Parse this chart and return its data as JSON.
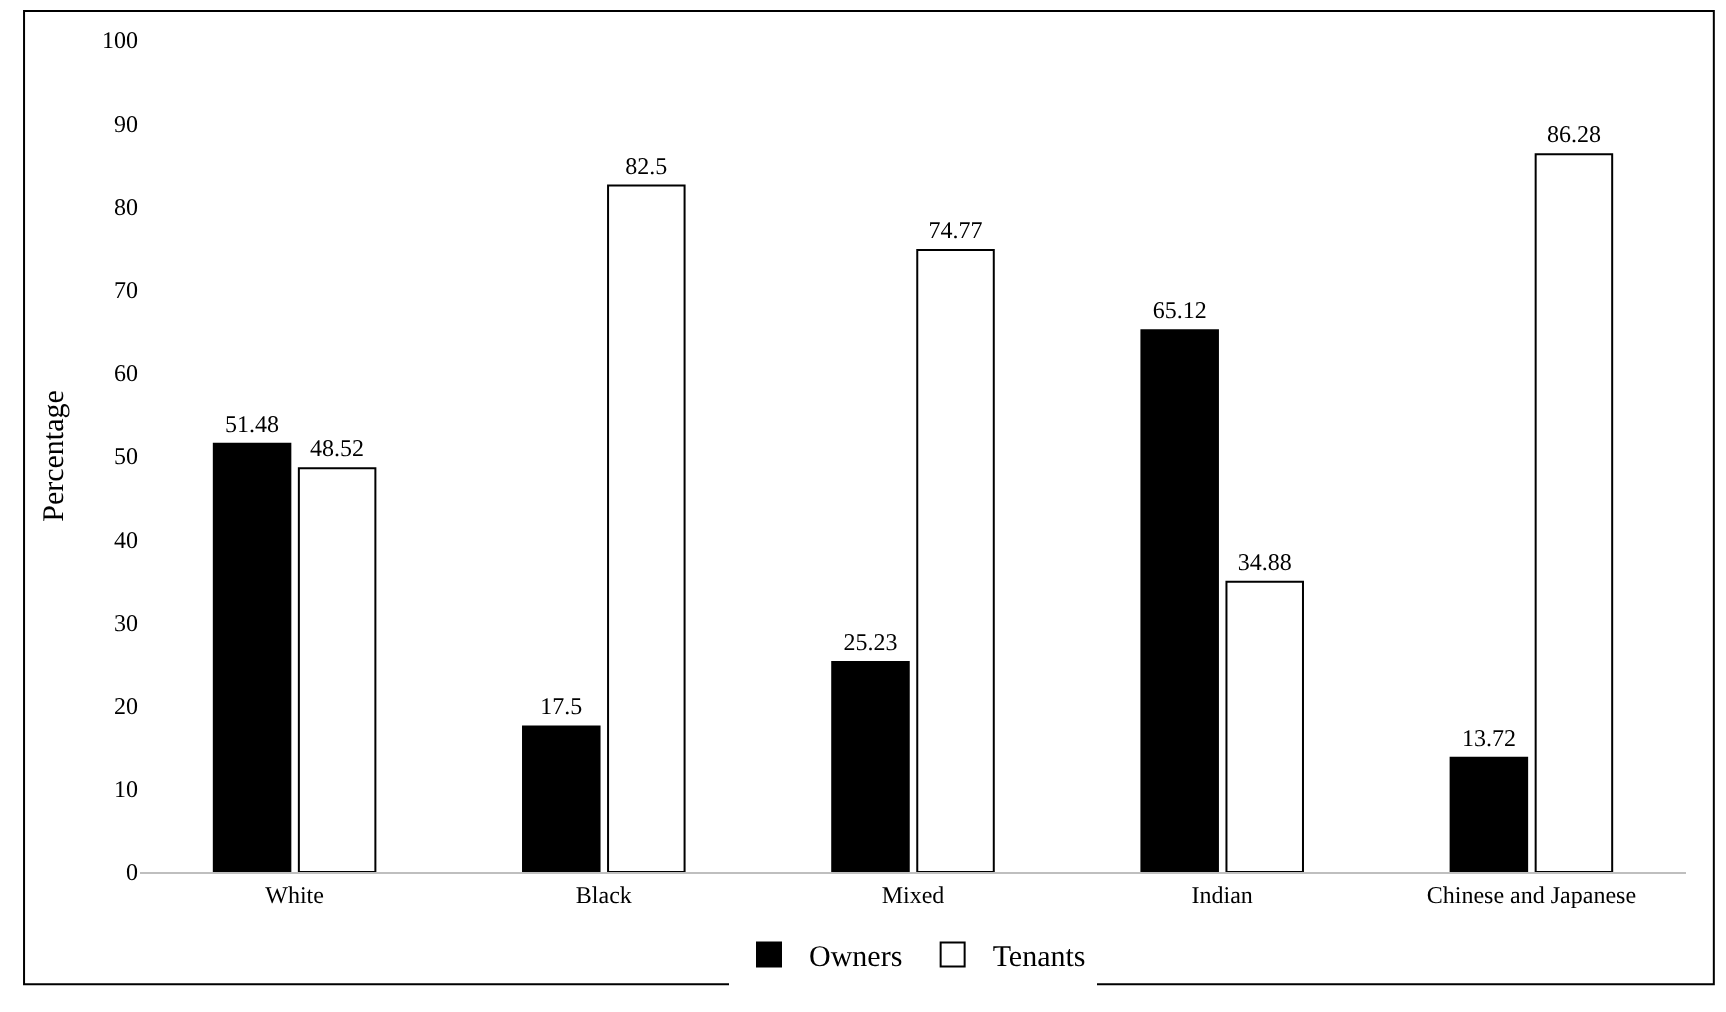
{
  "chart_data": {
    "type": "bar",
    "ylabel": "Percentage",
    "categories": [
      "White",
      "Black",
      "Mixed",
      "Indian",
      "Chinese and Japanese"
    ],
    "series": [
      {
        "name": "Owners",
        "color": "#000000",
        "values": [
          51.48,
          17.5,
          25.23,
          65.12,
          13.72
        ]
      },
      {
        "name": "Tenants",
        "color": "#ffffff",
        "values": [
          48.52,
          82.5,
          74.77,
          34.88,
          86.28
        ]
      }
    ],
    "ylim": [
      0,
      100
    ],
    "yticks": [
      0,
      10,
      20,
      30,
      40,
      50,
      60,
      70,
      80,
      90,
      100
    ],
    "data_labels": true,
    "grid": false,
    "legend": "bottom"
  }
}
